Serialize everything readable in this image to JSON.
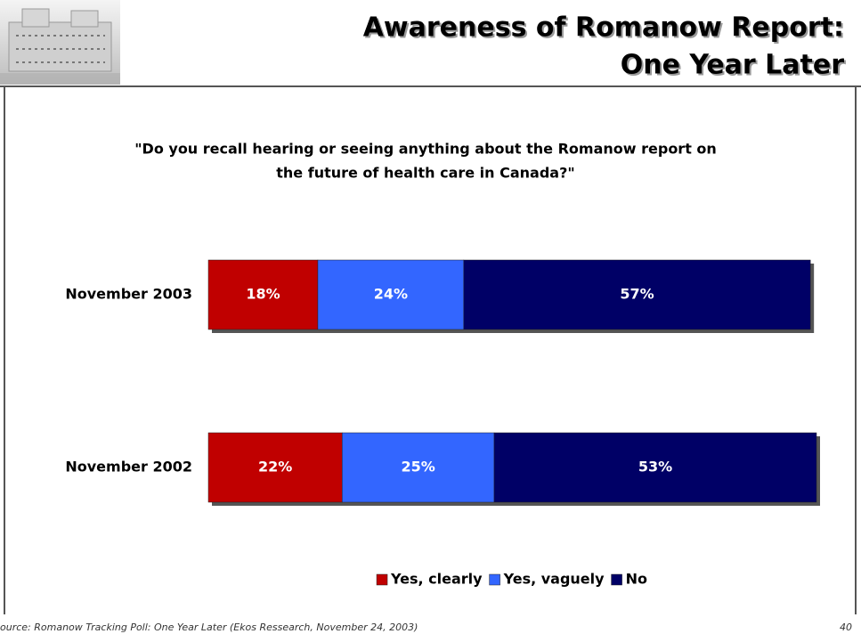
{
  "chart_data": {
    "type": "bar",
    "orientation": "horizontal",
    "stacked": true,
    "title": [
      "Awareness of Romanow Report:",
      "One Year Later"
    ],
    "subtitle": [
      "\"Do you recall hearing or seeing anything about the Romanow report on",
      "the future of health care in Canada?\""
    ],
    "categories": [
      "November 2003",
      "November 2002"
    ],
    "series": [
      {
        "name": "Yes, clearly",
        "color": "#c00000",
        "values": [
          18,
          22
        ],
        "value_labels": [
          "18%",
          "22%"
        ]
      },
      {
        "name": "Yes, vaguely",
        "color": "#3366ff",
        "values": [
          24,
          25
        ],
        "value_labels": [
          "24%",
          "25%"
        ]
      },
      {
        "name": "No",
        "color": "#000066",
        "values": [
          57,
          53
        ],
        "value_labels": [
          "57%",
          "53%"
        ]
      }
    ],
    "xlim": [
      0,
      100
    ],
    "legend": "bottom"
  },
  "footer": {
    "source": "ource: Romanow Tracking Poll:  One Year Later (Ekos Ressearch, November 24, 2003)",
    "page": "40"
  }
}
